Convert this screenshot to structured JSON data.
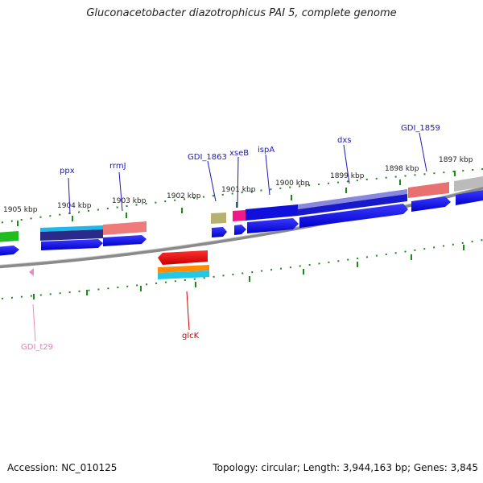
{
  "title": "Gluconacetobacter diazotrophicus PAI 5, complete genome",
  "footer": {
    "accession": "Accession: NC_010125",
    "topology": "Topology: circular; Length: 3,944,163 bp; Genes: 3,845"
  },
  "colors": {
    "backbone": "#888888",
    "tick": "#1a8a1a",
    "tick_label": "#222222",
    "gene_label_forward": "#1a1ab4",
    "gene_label_reverse": "#cc0000",
    "gene_label_trna": "#ee77bb"
  },
  "scale_ticks": [
    "1905 kbp",
    "1904 kbp",
    "1903 kbp",
    "1902 kbp",
    "1901 kbp",
    "1900 kbp",
    "1899 kbp",
    "1898 kbp",
    "1897 kbp"
  ],
  "gene_labels": [
    {
      "text": "ppx",
      "kind": "forward"
    },
    {
      "text": "rrmJ",
      "kind": "forward"
    },
    {
      "text": "GDI_1863",
      "kind": "forward"
    },
    {
      "text": "xseB",
      "kind": "forward"
    },
    {
      "text": "ispA",
      "kind": "forward"
    },
    {
      "text": "dxs",
      "kind": "forward"
    },
    {
      "text": "GDI_1859",
      "kind": "forward"
    },
    {
      "text": "glcK",
      "kind": "reverse"
    },
    {
      "text": "GDI_t29",
      "kind": "trna"
    }
  ]
}
